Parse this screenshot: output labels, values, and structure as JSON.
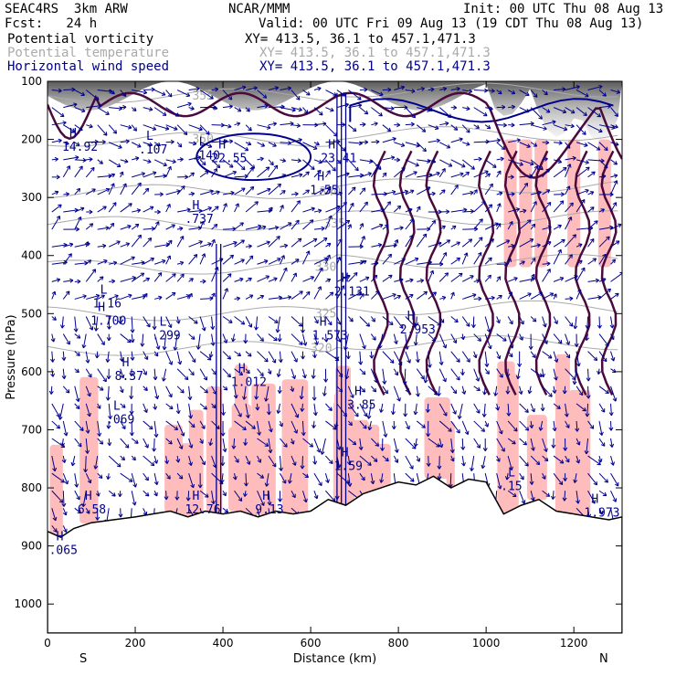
{
  "header": {
    "left1": "SEAC4RS  3km ARW",
    "left2": "Fcst:   24 h",
    "center1": "NCAR/MMM",
    "valid": "Valid: 00 UTC Fri 09 Aug 13 (19 CDT Thu 08 Aug 13)",
    "init": "Init: 00 UTC Thu 08 Aug 13"
  },
  "fields": [
    {
      "name": "Potential vorticity",
      "xy": "XY= 413.5, 36.1 to 457.1,471.3",
      "color": "#000000"
    },
    {
      "name": "Potential temperature",
      "xy": "XY= 413.5, 36.1 to 457.1,471.3",
      "color": "#aaaaaa"
    },
    {
      "name": "Horizontal wind speed",
      "xy": "XY= 413.5, 36.1 to 457.1,471.3",
      "color": "#00008b"
    }
  ],
  "chart_data": {
    "type": "cross-section",
    "xlabel": "Distance (km)",
    "ylabel": "Pressure (hPa)",
    "xlim": [
      0,
      1310
    ],
    "ylim": [
      1050,
      100
    ],
    "xticks": [
      0,
      200,
      400,
      600,
      800,
      1000,
      1200
    ],
    "yticks": [
      100,
      200,
      300,
      400,
      500,
      600,
      700,
      800,
      900,
      1000
    ],
    "end_labels": {
      "left": "S",
      "right": "N"
    },
    "colors": {
      "terrain": "#ffffff",
      "pv_shading": "#ffbcbc",
      "wind": "#00008b",
      "pv_contour": "#4b0a3c",
      "theta": "#aaaaaa",
      "speed_contour": "#00008b"
    },
    "terrain_surface": [
      {
        "x": 0,
        "p": 875
      },
      {
        "x": 30,
        "p": 885
      },
      {
        "x": 60,
        "p": 870
      },
      {
        "x": 100,
        "p": 860
      },
      {
        "x": 150,
        "p": 855
      },
      {
        "x": 200,
        "p": 850
      },
      {
        "x": 240,
        "p": 845
      },
      {
        "x": 280,
        "p": 840
      },
      {
        "x": 320,
        "p": 850
      },
      {
        "x": 360,
        "p": 840
      },
      {
        "x": 400,
        "p": 845
      },
      {
        "x": 440,
        "p": 840
      },
      {
        "x": 480,
        "p": 850
      },
      {
        "x": 520,
        "p": 840
      },
      {
        "x": 560,
        "p": 845
      },
      {
        "x": 600,
        "p": 840
      },
      {
        "x": 640,
        "p": 820
      },
      {
        "x": 680,
        "p": 830
      },
      {
        "x": 720,
        "p": 810
      },
      {
        "x": 760,
        "p": 800
      },
      {
        "x": 800,
        "p": 790
      },
      {
        "x": 840,
        "p": 795
      },
      {
        "x": 880,
        "p": 780
      },
      {
        "x": 920,
        "p": 800
      },
      {
        "x": 960,
        "p": 785
      },
      {
        "x": 1000,
        "p": 790
      },
      {
        "x": 1040,
        "p": 845
      },
      {
        "x": 1080,
        "p": 830
      },
      {
        "x": 1120,
        "p": 820
      },
      {
        "x": 1160,
        "p": 840
      },
      {
        "x": 1200,
        "p": 845
      },
      {
        "x": 1240,
        "p": 850
      },
      {
        "x": 1280,
        "p": 855
      },
      {
        "x": 1310,
        "p": 850
      }
    ],
    "theta_contours": [
      {
        "label": "355",
        "p": 125,
        "label_x": 330
      },
      {
        "label": "350",
        "p": 200,
        "label_x": 330
      },
      {
        "label": "340",
        "p": 290,
        "label_x": 620
      },
      {
        "label": "335",
        "p": 345,
        "label_x": 630
      },
      {
        "label": "330",
        "p": 420,
        "label_x": 610
      },
      {
        "label": "325",
        "p": 500,
        "label_x": 610
      },
      {
        "label": "320",
        "p": 560,
        "label_x": 600
      }
    ],
    "extrema": [
      {
        "type": "H",
        "value": "14.92",
        "x": 50,
        "p": 205
      },
      {
        "type": "L",
        "value": ".107",
        "x": 225,
        "p": 210
      },
      {
        "type": "L",
        "value": ".140",
        "x": 345,
        "p": 220
      },
      {
        "type": "H",
        "value": "22.55",
        "x": 390,
        "p": 225
      },
      {
        "type": "H",
        "value": "23.41",
        "x": 640,
        "p": 225
      },
      {
        "type": "H",
        "value": "1.55",
        "x": 615,
        "p": 280
      },
      {
        "type": "H",
        "value": ".737",
        "x": 330,
        "p": 330
      },
      {
        "type": "H",
        "value": "2.131",
        "x": 670,
        "p": 455
      },
      {
        "type": "L",
        "value": "1.16",
        "x": 120,
        "p": 475
      },
      {
        "type": "H",
        "value": "1.700",
        "x": 115,
        "p": 505
      },
      {
        "type": "L",
        "value": ".299",
        "x": 255,
        "p": 530
      },
      {
        "type": "H",
        "value": "1.573",
        "x": 620,
        "p": 530
      },
      {
        "type": "H",
        "value": "2.953",
        "x": 820,
        "p": 520
      },
      {
        "type": "H",
        "value": "8.37",
        "x": 170,
        "p": 600
      },
      {
        "type": "H",
        "value": "1.012",
        "x": 435,
        "p": 610
      },
      {
        "type": "H",
        "value": "3.85",
        "x": 700,
        "p": 650
      },
      {
        "type": "L",
        "value": ".069",
        "x": 150,
        "p": 675
      },
      {
        "type": "H",
        "value": "1.59",
        "x": 670,
        "p": 755
      },
      {
        "type": "L",
        "value": ".15",
        "x": 1050,
        "p": 790
      },
      {
        "type": "H",
        "value": "6.58",
        "x": 85,
        "p": 830
      },
      {
        "type": "H",
        "value": "12.76",
        "x": 330,
        "p": 830
      },
      {
        "type": "H",
        "value": "9.13",
        "x": 490,
        "p": 830
      },
      {
        "type": "H",
        "value": "1.973",
        "x": 1240,
        "p": 835
      },
      {
        "type": "H",
        "value": ".065",
        "x": 20,
        "p": 900
      }
    ]
  }
}
